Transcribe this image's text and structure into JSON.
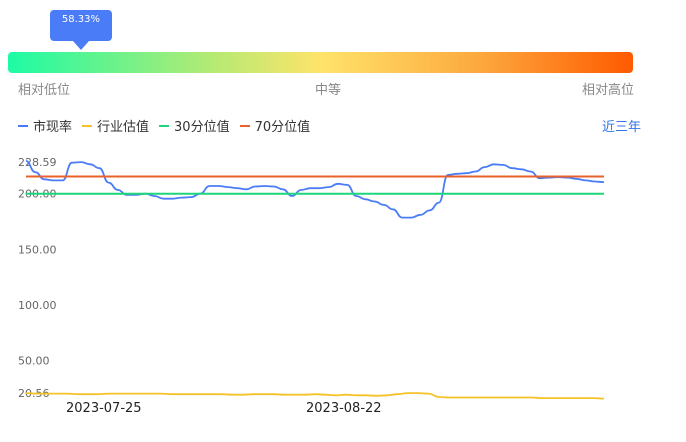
{
  "tooltip": {
    "value": "58.33%"
  },
  "percentile_bar": {
    "position_fraction": 0.1167,
    "labels": {
      "low": "相对低位",
      "mid": "中等",
      "high": "相对高位"
    },
    "gradient": [
      "#1dfba5",
      "#b6ea73",
      "#ffe36a",
      "#fcaa3f",
      "#ff5a00"
    ]
  },
  "legend": [
    {
      "label": "市现率",
      "color": "#4a7cf7"
    },
    {
      "label": "行业估值",
      "color": "#f5c227"
    },
    {
      "label": "30分位值",
      "color": "#1dd67a"
    },
    {
      "label": "70分位值",
      "color": "#e8622a"
    }
  ],
  "range_selector": {
    "label": "近三年"
  },
  "chart_data": {
    "type": "line",
    "ylim": [
      20.56,
      228.59
    ],
    "yticks": [
      "228.59",
      "200.00",
      "150.00",
      "100.00",
      "50.00",
      "20.56"
    ],
    "xticks": [
      "2023-07-25",
      "2023-08-22"
    ],
    "series": [
      {
        "name": "市现率",
        "color": "#4a7cf7",
        "values": [
          229.5,
          219.5,
          213.0,
          212.0,
          212.0,
          228.0,
          228.5,
          226.5,
          223.0,
          210.0,
          203.5,
          199.0,
          199.0,
          200.0,
          198.0,
          195.5,
          195.5,
          196.5,
          197.0,
          200.0,
          207.0,
          207.0,
          206.0,
          205.0,
          204.0,
          206.5,
          207.0,
          206.5,
          204.0,
          198.0,
          203.5,
          205.0,
          205.0,
          206.0,
          209.0,
          208.0,
          198.0,
          195.0,
          193.0,
          190.0,
          186.0,
          178.5,
          178.5,
          181.0,
          185.0,
          192.0,
          217.0,
          218.0,
          218.5,
          220.0,
          224.0,
          226.5,
          226.0,
          223.0,
          222.0,
          220.0,
          214.0,
          214.5,
          215.0,
          214.5,
          213.5,
          212.0,
          211.0,
          210.5
        ]
      },
      {
        "name": "行业估值",
        "color": "#f5c227",
        "values": [
          20.5,
          20.0,
          20.0,
          20.0,
          20.0,
          19.5,
          19.5,
          19.5,
          20.0,
          20.0,
          20.0,
          20.0,
          20.0,
          20.0,
          19.5,
          19.5,
          19.5,
          19.5,
          19.5,
          19.5,
          19.0,
          19.0,
          19.5,
          19.5,
          19.5,
          19.0,
          19.0,
          19.0,
          19.5,
          19.0,
          18.5,
          19.0,
          18.5,
          18.5,
          18.0,
          18.5,
          19.5,
          20.5,
          20.5,
          20.0,
          17.0,
          16.5,
          16.5,
          16.5,
          16.5,
          16.5,
          16.5,
          16.5,
          16.5,
          16.5,
          16.0,
          16.0,
          16.0,
          16.0,
          16.0,
          16.0,
          15.5
        ]
      },
      {
        "name": "30分位值",
        "color": "#1dd67a",
        "constant": 200.0
      },
      {
        "name": "70分位值",
        "color": "#e8622a",
        "constant": 215.5
      }
    ]
  }
}
